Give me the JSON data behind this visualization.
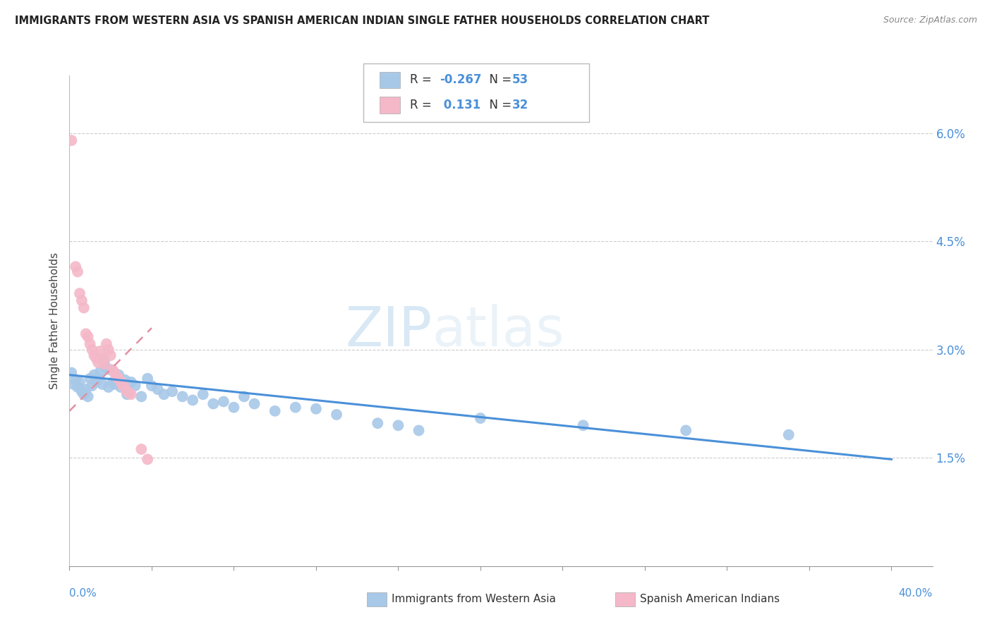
{
  "title": "IMMIGRANTS FROM WESTERN ASIA VS SPANISH AMERICAN INDIAN SINGLE FATHER HOUSEHOLDS CORRELATION CHART",
  "source": "Source: ZipAtlas.com",
  "ylabel": "Single Father Households",
  "watermark": "ZIPatlas",
  "blue_color": "#a8c8e8",
  "pink_color": "#f4b8c8",
  "trend_blue_color": "#4a90d9",
  "trend_pink_color": "#e090a0",
  "blue_scatter": [
    [
      0.001,
      0.0268
    ],
    [
      0.002,
      0.0252
    ],
    [
      0.003,
      0.0258
    ],
    [
      0.004,
      0.0248
    ],
    [
      0.005,
      0.0255
    ],
    [
      0.006,
      0.0242
    ],
    [
      0.007,
      0.0238
    ],
    [
      0.008,
      0.0245
    ],
    [
      0.009,
      0.0235
    ],
    [
      0.01,
      0.026
    ],
    [
      0.011,
      0.025
    ],
    [
      0.012,
      0.0265
    ],
    [
      0.013,
      0.0255
    ],
    [
      0.014,
      0.026
    ],
    [
      0.015,
      0.027
    ],
    [
      0.016,
      0.0252
    ],
    [
      0.017,
      0.0285
    ],
    [
      0.018,
      0.0275
    ],
    [
      0.019,
      0.0248
    ],
    [
      0.02,
      0.0272
    ],
    [
      0.021,
      0.0255
    ],
    [
      0.022,
      0.0252
    ],
    [
      0.024,
      0.0265
    ],
    [
      0.025,
      0.0248
    ],
    [
      0.027,
      0.0258
    ],
    [
      0.028,
      0.0238
    ],
    [
      0.03,
      0.0255
    ],
    [
      0.032,
      0.025
    ],
    [
      0.035,
      0.0235
    ],
    [
      0.038,
      0.026
    ],
    [
      0.04,
      0.025
    ],
    [
      0.043,
      0.0245
    ],
    [
      0.046,
      0.0238
    ],
    [
      0.05,
      0.0242
    ],
    [
      0.055,
      0.0235
    ],
    [
      0.06,
      0.023
    ],
    [
      0.065,
      0.0238
    ],
    [
      0.07,
      0.0225
    ],
    [
      0.075,
      0.0228
    ],
    [
      0.08,
      0.022
    ],
    [
      0.085,
      0.0235
    ],
    [
      0.09,
      0.0225
    ],
    [
      0.1,
      0.0215
    ],
    [
      0.11,
      0.022
    ],
    [
      0.12,
      0.0218
    ],
    [
      0.13,
      0.021
    ],
    [
      0.15,
      0.0198
    ],
    [
      0.16,
      0.0195
    ],
    [
      0.17,
      0.0188
    ],
    [
      0.2,
      0.0205
    ],
    [
      0.25,
      0.0195
    ],
    [
      0.3,
      0.0188
    ],
    [
      0.35,
      0.0182
    ]
  ],
  "pink_scatter": [
    [
      0.001,
      0.059
    ],
    [
      0.003,
      0.0415
    ],
    [
      0.004,
      0.0408
    ],
    [
      0.005,
      0.0378
    ],
    [
      0.006,
      0.0368
    ],
    [
      0.007,
      0.0358
    ],
    [
      0.008,
      0.0322
    ],
    [
      0.009,
      0.0318
    ],
    [
      0.01,
      0.0308
    ],
    [
      0.011,
      0.03
    ],
    [
      0.012,
      0.0292
    ],
    [
      0.013,
      0.0288
    ],
    [
      0.014,
      0.0282
    ],
    [
      0.015,
      0.0298
    ],
    [
      0.016,
      0.0288
    ],
    [
      0.017,
      0.028
    ],
    [
      0.018,
      0.0308
    ],
    [
      0.019,
      0.03
    ],
    [
      0.02,
      0.0292
    ],
    [
      0.021,
      0.0272
    ],
    [
      0.022,
      0.0268
    ],
    [
      0.023,
      0.0262
    ],
    [
      0.024,
      0.026
    ],
    [
      0.025,
      0.0255
    ],
    [
      0.026,
      0.025
    ],
    [
      0.027,
      0.0248
    ],
    [
      0.028,
      0.0242
    ],
    [
      0.029,
      0.024
    ],
    [
      0.03,
      0.0238
    ],
    [
      0.035,
      0.0162
    ],
    [
      0.038,
      0.0148
    ]
  ],
  "blue_trend_x": [
    0.0,
    0.4
  ],
  "blue_trend_y": [
    0.0265,
    0.0148
  ],
  "pink_trend_x": [
    0.0,
    0.04
  ],
  "pink_trend_y": [
    0.0215,
    0.033
  ],
  "xlim": [
    0.0,
    0.42
  ],
  "ylim": [
    0.0,
    0.068
  ],
  "yticks": [
    0.015,
    0.03,
    0.045,
    0.06
  ],
  "ytick_labels": [
    "1.5%",
    "3.0%",
    "4.5%",
    "6.0%"
  ],
  "xtick_positions": [
    0.0,
    0.04,
    0.08,
    0.12,
    0.16,
    0.2,
    0.24,
    0.28,
    0.32,
    0.36,
    0.4
  ]
}
